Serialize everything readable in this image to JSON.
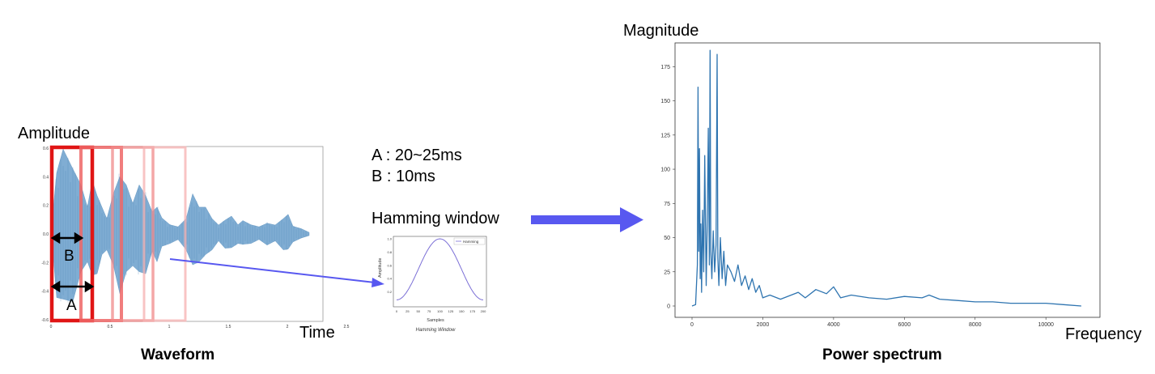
{
  "waveform": {
    "ylabel": "Amplitude",
    "xlabel": "Time",
    "caption": "Waveform",
    "y_ticks": [
      "0.6",
      "0.4",
      "0.2",
      "0.0",
      "-0.2",
      "-0.4",
      "-0.6"
    ],
    "x_ticks": [
      "0",
      "0.5",
      "1",
      "1.5",
      "2",
      "2.5"
    ],
    "frame_labels": {
      "a": "A",
      "b": "B"
    },
    "colors": {
      "wave": "#6a9fcb",
      "frame": "#e01515"
    }
  },
  "params": {
    "line_a": "A : 20~25ms",
    "line_b": "B : 10ms"
  },
  "hamming": {
    "title": "Hamming window",
    "legend": "Hamming",
    "ylabel": "Amplitude",
    "xlabel": "Samples",
    "subtitle": "Hamming Window",
    "y_ticks": [
      "1.0",
      "0.8",
      "0.6",
      "0.4",
      "0.2"
    ],
    "x_ticks": [
      "0",
      "25",
      "50",
      "75",
      "100",
      "125",
      "150",
      "175",
      "200"
    ],
    "color": "#7b6fd6"
  },
  "arrow_color": "#5858f0",
  "spectrum": {
    "ylabel": "Magnitude",
    "xlabel": "Frequency",
    "caption": "Power spectrum",
    "color": "#2e74b0",
    "chart_data": {
      "type": "line",
      "xlim": [
        0,
        11025
      ],
      "ylim": [
        0,
        190
      ],
      "x_ticks": [
        0,
        2000,
        4000,
        6000,
        8000,
        10000
      ],
      "y_ticks": [
        0,
        25,
        50,
        75,
        100,
        125,
        150,
        175
      ],
      "series": [
        {
          "x": [
            0,
            100,
            150,
            170,
            190,
            210,
            230,
            250,
            270,
            300,
            330,
            360,
            400,
            430,
            460,
            490,
            510,
            530,
            560,
            600,
            640,
            680,
            710,
            730,
            760,
            800,
            850,
            900,
            950,
            1000,
            1100,
            1200,
            1300,
            1400,
            1500,
            1600,
            1700,
            1800,
            1900,
            2000,
            2200,
            2500,
            3000,
            3200,
            3500,
            3800,
            4000,
            4200,
            4500,
            5000,
            5500,
            6000,
            6500,
            6700,
            7000,
            7500,
            8000,
            8500,
            9000,
            9500,
            10000,
            10500,
            11000
          ],
          "y": [
            0,
            1,
            30,
            160,
            40,
            115,
            20,
            60,
            10,
            70,
            25,
            110,
            15,
            60,
            130,
            30,
            187,
            40,
            20,
            55,
            25,
            45,
            184,
            35,
            15,
            50,
            20,
            40,
            15,
            30,
            25,
            18,
            30,
            15,
            22,
            12,
            20,
            10,
            15,
            6,
            8,
            5,
            10,
            6,
            12,
            9,
            14,
            6,
            8,
            6,
            5,
            7,
            6,
            8,
            5,
            4,
            3,
            3,
            2,
            2,
            2,
            1,
            0
          ]
        }
      ]
    }
  }
}
